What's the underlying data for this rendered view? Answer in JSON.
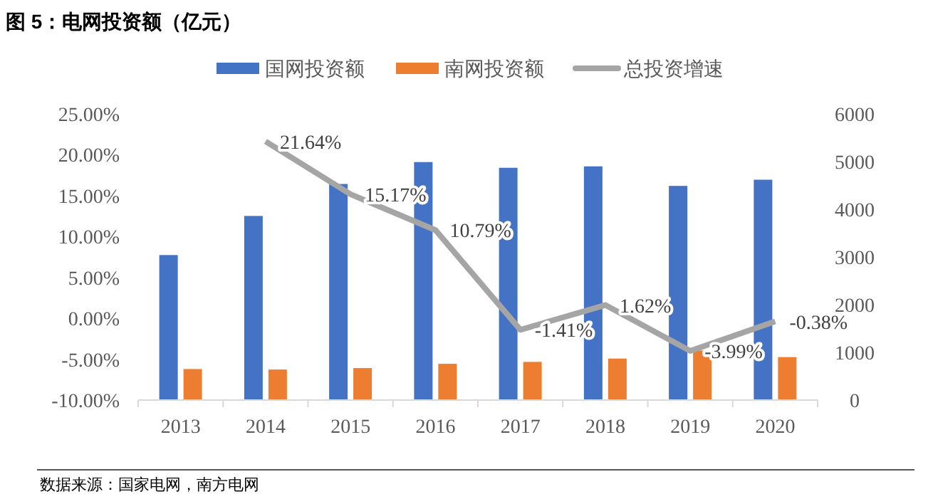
{
  "chart_data": {
    "type": "bar",
    "title": "图 5：电网投资额（亿元）",
    "categories": [
      "2013",
      "2014",
      "2015",
      "2016",
      "2017",
      "2018",
      "2019",
      "2020"
    ],
    "series": [
      {
        "name": "国网投资额",
        "axis": "y2",
        "color": "#4472c4",
        "values": [
          3040,
          3860,
          4530,
          4990,
          4870,
          4900,
          4490,
          4620
        ]
      },
      {
        "name": "南网投资额",
        "axis": "y2",
        "color": "#ed7d31",
        "values": [
          650,
          640,
          670,
          760,
          800,
          870,
          1040,
          900
        ]
      },
      {
        "name": "总投资增速",
        "type": "line",
        "color": "#a5a5a5",
        "values": [
          null,
          21.64,
          15.17,
          10.79,
          -1.41,
          1.62,
          -3.99,
          -0.38
        ],
        "value_labels": [
          null,
          "21.64%",
          "15.17%",
          "10.79%",
          "-1.41%",
          "1.62%",
          "-3.99%",
          "-0.38%"
        ]
      }
    ],
    "ylim": [
      -10,
      25
    ],
    "yticks": [
      {
        "value": -10,
        "label": "-10.00%"
      },
      {
        "value": -5,
        "label": "-5.00%"
      },
      {
        "value": 0,
        "label": "0.00%"
      },
      {
        "value": 5,
        "label": "5.00%"
      },
      {
        "value": 10,
        "label": "10.00%"
      },
      {
        "value": 15,
        "label": "15.00%"
      },
      {
        "value": 20,
        "label": "20.00%"
      },
      {
        "value": 25,
        "label": "25.00%"
      }
    ],
    "y2lim": [
      0,
      6000
    ],
    "y2ticks": [
      0,
      1000,
      2000,
      3000,
      4000,
      5000,
      6000
    ],
    "grid": false,
    "legend": "top",
    "annotations": [
      "数据来源：国家电网，南方电网"
    ]
  }
}
